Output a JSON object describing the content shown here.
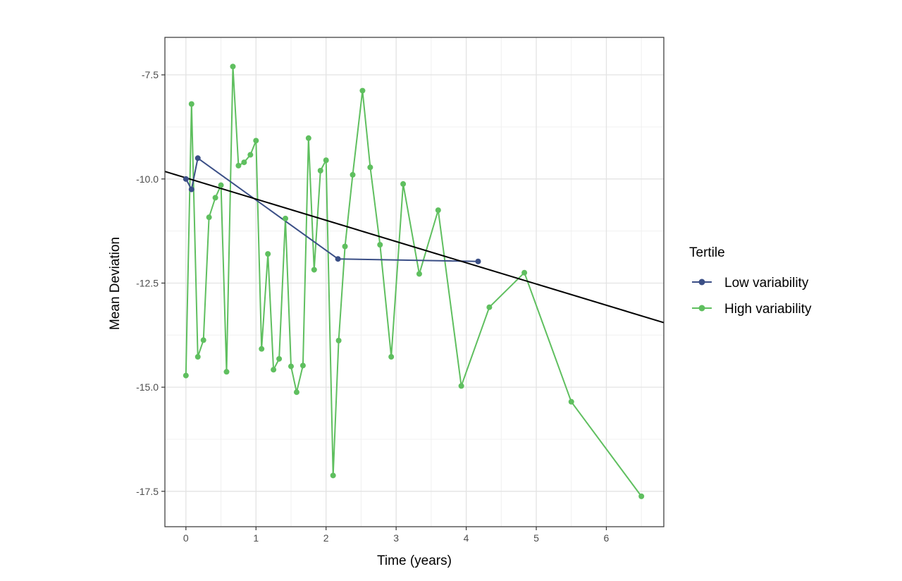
{
  "chart_data": {
    "type": "line",
    "title": "",
    "xlabel": "Time (years)",
    "ylabel": "Mean Deviation",
    "xlim": [
      -0.3,
      6.82
    ],
    "ylim": [
      -18.35,
      -6.6
    ],
    "x_ticks": [
      0,
      1,
      2,
      3,
      4,
      5,
      6
    ],
    "x_tick_labels": [
      "0",
      "1",
      "2",
      "3",
      "4",
      "5",
      "6"
    ],
    "y_ticks": [
      -7.5,
      -10.0,
      -12.5,
      -15.0,
      -17.5
    ],
    "y_tick_labels": [
      "-7.5",
      "-10.0",
      "-12.5",
      "-15.0",
      "-17.5"
    ],
    "grid": true,
    "legend": {
      "title": "Tertile",
      "position": "right"
    },
    "series": [
      {
        "name": "Low variability",
        "color": "#3b4f86",
        "points": [
          [
            0.0,
            -10.0
          ],
          [
            0.08,
            -10.25
          ],
          [
            0.17,
            -9.5
          ],
          [
            2.17,
            -11.92
          ],
          [
            4.17,
            -11.98
          ]
        ]
      },
      {
        "name": "High variability",
        "color": "#5fbf5f",
        "points": [
          [
            0.0,
            -14.72
          ],
          [
            0.08,
            -8.2
          ],
          [
            0.17,
            -14.27
          ],
          [
            0.25,
            -13.87
          ],
          [
            0.33,
            -10.92
          ],
          [
            0.42,
            -10.45
          ],
          [
            0.5,
            -10.15
          ],
          [
            0.58,
            -14.63
          ],
          [
            0.67,
            -7.3
          ],
          [
            0.75,
            -9.68
          ],
          [
            0.83,
            -9.6
          ],
          [
            0.92,
            -9.42
          ],
          [
            1.0,
            -9.08
          ],
          [
            1.08,
            -14.08
          ],
          [
            1.17,
            -11.8
          ],
          [
            1.25,
            -14.58
          ],
          [
            1.33,
            -14.32
          ],
          [
            1.42,
            -10.95
          ],
          [
            1.5,
            -14.5
          ],
          [
            1.58,
            -15.12
          ],
          [
            1.67,
            -14.48
          ],
          [
            1.75,
            -9.02
          ],
          [
            1.83,
            -12.18
          ],
          [
            1.92,
            -9.8
          ],
          [
            2.0,
            -9.55
          ],
          [
            2.1,
            -17.12
          ],
          [
            2.18,
            -13.88
          ],
          [
            2.27,
            -11.62
          ],
          [
            2.38,
            -9.9
          ],
          [
            2.52,
            -7.88
          ],
          [
            2.63,
            -9.72
          ],
          [
            2.77,
            -11.58
          ],
          [
            2.93,
            -14.27
          ],
          [
            3.1,
            -10.12
          ],
          [
            3.33,
            -12.28
          ],
          [
            3.6,
            -10.75
          ],
          [
            3.93,
            -14.97
          ],
          [
            4.33,
            -13.08
          ],
          [
            4.83,
            -12.25
          ],
          [
            5.5,
            -15.35
          ],
          [
            6.5,
            -17.62
          ]
        ]
      }
    ],
    "trend_line": {
      "color": "#000000",
      "x": [
        -0.3,
        6.82
      ],
      "y": [
        -9.82,
        -13.45
      ]
    }
  }
}
